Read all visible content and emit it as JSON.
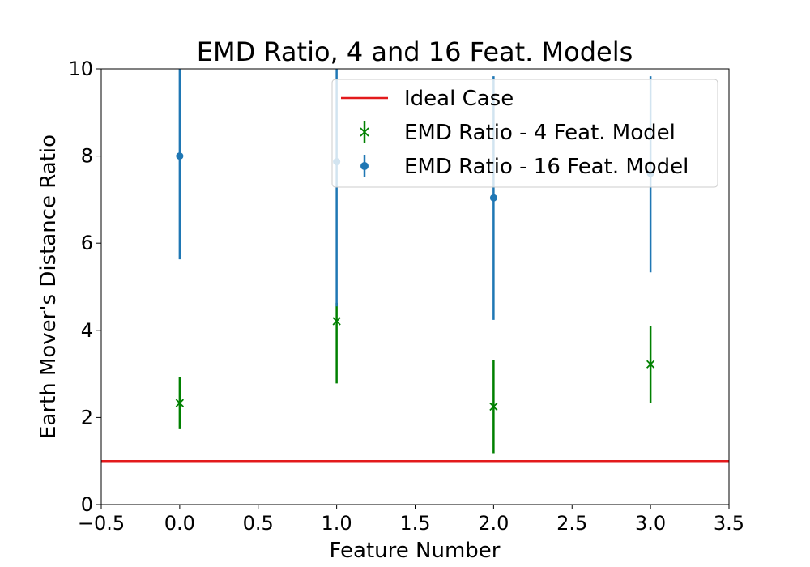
{
  "chart_data": {
    "type": "scatter",
    "title": "EMD Ratio, 4 and 16 Feat. Models",
    "xlabel": "Feature Number",
    "ylabel": "Earth Mover's Distance Ratio",
    "xlim": [
      -0.5,
      3.5
    ],
    "ylim": [
      0,
      10
    ],
    "xticks": [
      -0.5,
      0.0,
      0.5,
      1.0,
      1.5,
      2.0,
      2.5,
      3.0,
      3.5
    ],
    "xtick_labels": [
      "−0.5",
      "0.0",
      "0.5",
      "1.0",
      "1.5",
      "2.0",
      "2.5",
      "3.0",
      "3.5"
    ],
    "yticks": [
      0,
      2,
      4,
      6,
      8,
      10
    ],
    "ytick_labels": [
      "0",
      "2",
      "4",
      "6",
      "8",
      "10"
    ],
    "grid": false,
    "legend_position": "top-right",
    "reference_line": {
      "name": "Ideal Case",
      "y": 1,
      "color": "#e31a1c"
    },
    "series": [
      {
        "name": "EMD Ratio - 4 Feat. Model",
        "marker": "x",
        "color": "#008000",
        "x": [
          0,
          1,
          2,
          3
        ],
        "y": [
          2.33,
          4.21,
          2.25,
          3.22
        ],
        "yerr_low": [
          1.73,
          2.78,
          1.18,
          2.33
        ],
        "yerr_high": [
          2.93,
          4.63,
          3.32,
          4.09
        ]
      },
      {
        "name": "EMD Ratio - 16 Feat. Model",
        "marker": "o",
        "color": "#1f77b4",
        "x": [
          0,
          1,
          2,
          3
        ],
        "y": [
          8.0,
          7.87,
          7.04,
          7.6
        ],
        "yerr_low": [
          5.63,
          4.55,
          4.24,
          5.33
        ],
        "yerr_high": [
          10.0,
          10.0,
          9.83,
          9.83
        ]
      }
    ]
  }
}
